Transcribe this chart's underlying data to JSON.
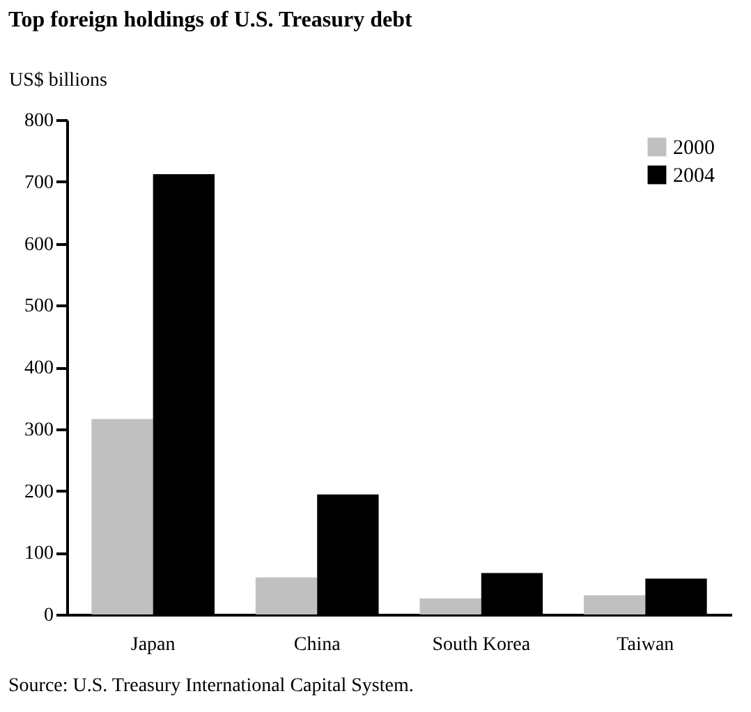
{
  "chart_data": {
    "type": "bar",
    "title": "Top foreign holdings of U.S. Treasury debt",
    "ylabel": "US$ billions",
    "categories": [
      "Japan",
      "China",
      "South Korea",
      "Taiwan"
    ],
    "series": [
      {
        "name": "2000",
        "color": "#c0c0c0",
        "values": [
          316,
          60,
          26,
          31
        ]
      },
      {
        "name": "2004",
        "color": "#000000",
        "values": [
          712,
          194,
          67,
          58
        ]
      }
    ],
    "ylim": [
      0,
      800
    ],
    "yticks": [
      0,
      100,
      200,
      300,
      400,
      500,
      600,
      700,
      800
    ],
    "grid": false,
    "legend": "top right",
    "annotations": [
      "Source: U.S. Treasury International Capital System."
    ]
  }
}
